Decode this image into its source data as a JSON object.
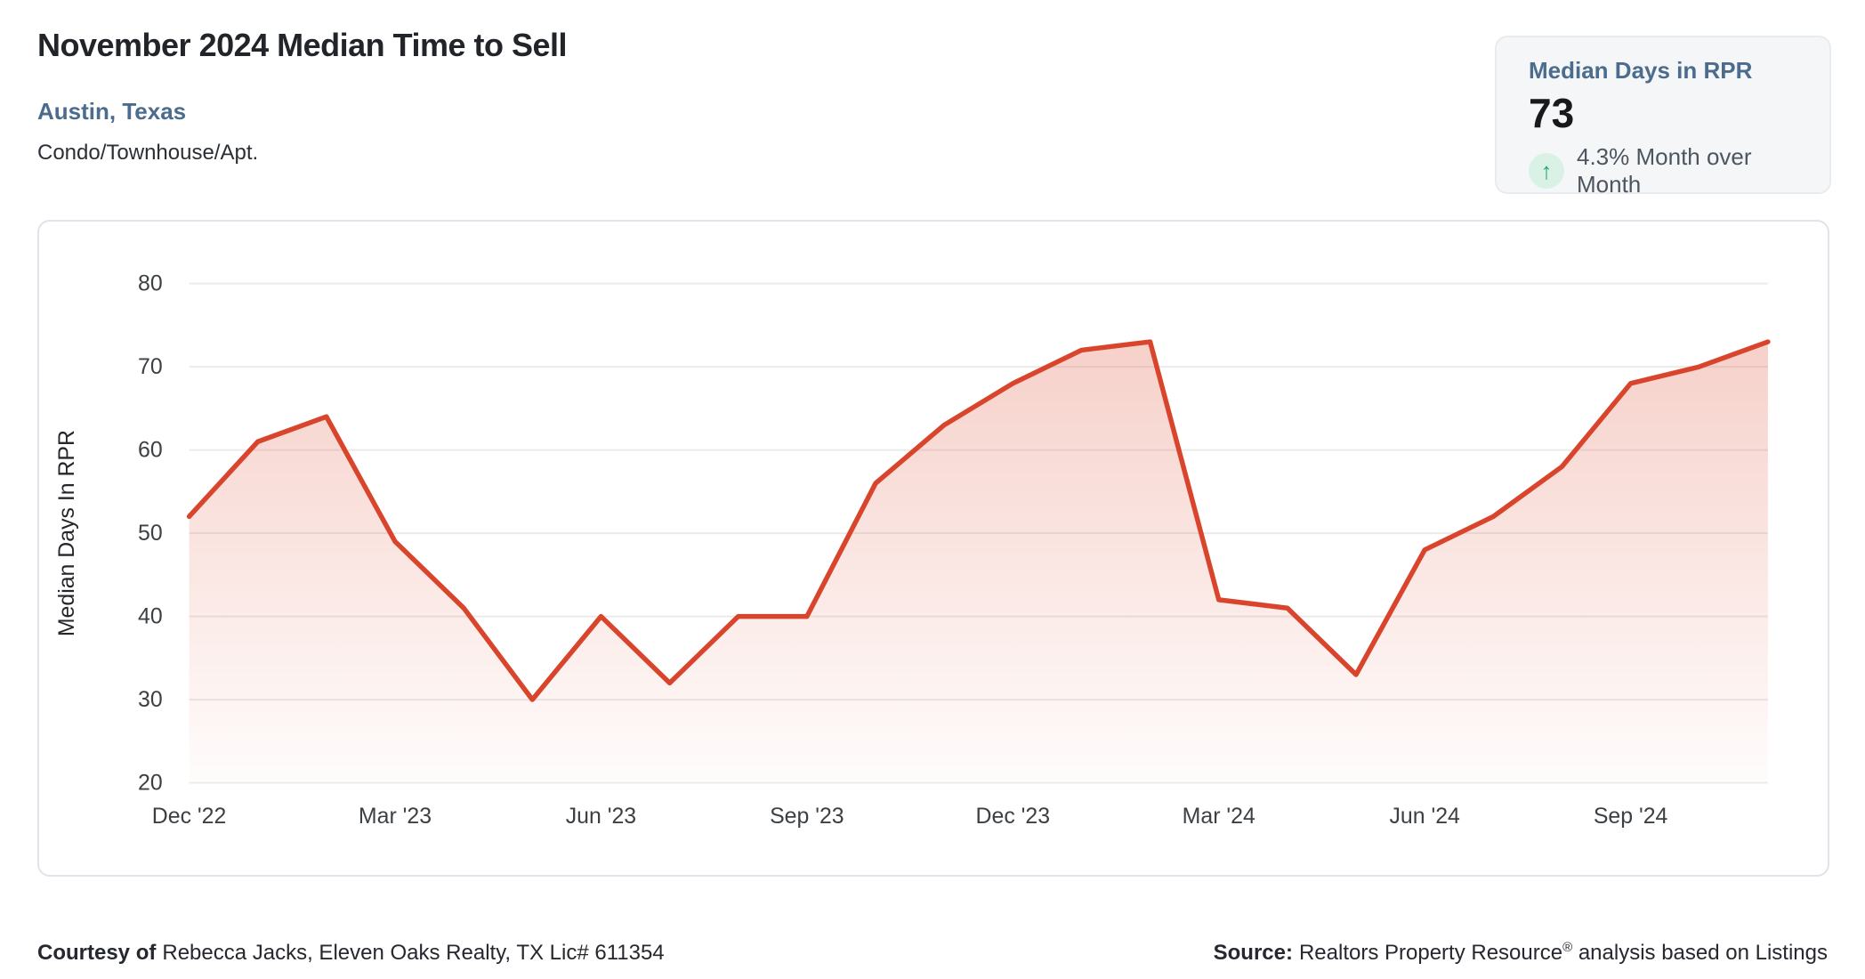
{
  "header": {
    "title": "November 2024 Median Time to Sell",
    "location": "Austin, Texas",
    "property_type": "Condo/Townhouse/Apt."
  },
  "stat_card": {
    "label": "Median Days in RPR",
    "value": "73",
    "change_arrow": "↑",
    "change_text": "4.3% Month over Month",
    "arrow_color": "#27a567",
    "arrow_bg_color": "#d9f2e5"
  },
  "chart_data": {
    "type": "area",
    "title": "",
    "xlabel": "",
    "ylabel": "Median Days In RPR",
    "categories": [
      "Dec '22",
      "Jan '23",
      "Feb '23",
      "Mar '23",
      "Apr '23",
      "May '23",
      "Jun '23",
      "Jul '23",
      "Aug '23",
      "Sep '23",
      "Oct '23",
      "Nov '23",
      "Dec '23",
      "Jan '24",
      "Feb '24",
      "Mar '24",
      "Apr '24",
      "May '24",
      "Jun '24",
      "Jul '24",
      "Aug '24",
      "Sep '24",
      "Oct '24",
      "Nov '24"
    ],
    "values": [
      52,
      61,
      64,
      49,
      41,
      30,
      40,
      32,
      40,
      40,
      56,
      63,
      68,
      72,
      73,
      42,
      41,
      33,
      48,
      52,
      58,
      68,
      70,
      73
    ],
    "x_tick_indices": [
      0,
      3,
      6,
      9,
      12,
      15,
      18,
      21
    ],
    "yticks": [
      20,
      30,
      40,
      50,
      60,
      70,
      80
    ],
    "ylim": [
      20,
      80
    ],
    "grid": true,
    "legend": "none",
    "line_color": "#d9452c",
    "fill_color": "#de4c32",
    "grid_color": "#ebebeb",
    "tick_color": "#3d4043",
    "axis_title_color": "#24262a"
  },
  "footer": {
    "courtesy_label": "Courtesy of",
    "courtesy_text": "Rebecca Jacks, Eleven Oaks Realty, TX Lic# 611354",
    "source_label": "Source:",
    "source_name": "Realtors Property Resource",
    "source_reg": "®",
    "source_rest": "analysis based on Listings"
  }
}
